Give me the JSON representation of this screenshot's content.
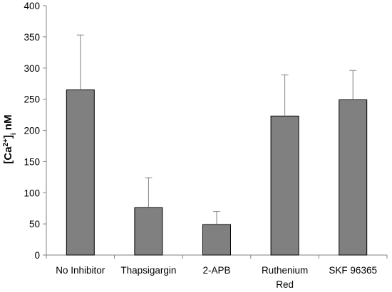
{
  "chart_data": {
    "type": "bar",
    "categories": [
      [
        "No Inhibitor"
      ],
      [
        "Thapsigargin"
      ],
      [
        "2-APB"
      ],
      [
        "Ruthenium",
        "Red"
      ],
      [
        "SKF 96365"
      ]
    ],
    "values": [
      265,
      76,
      49,
      223,
      249
    ],
    "error_upper": [
      353,
      124,
      70,
      289,
      296
    ],
    "ylabel": {
      "main": "[Ca",
      "sup": "2+",
      "close": "]",
      "sub": "i",
      "unit": " nM"
    },
    "ylim": [
      0,
      400
    ],
    "yticks": [
      0,
      50,
      100,
      150,
      200,
      250,
      300,
      350,
      400
    ],
    "grid": false,
    "colors": {
      "bar_fill": "#808080",
      "bar_stroke": "#000000",
      "axis": "#808080",
      "error_bar": "#808080"
    }
  }
}
